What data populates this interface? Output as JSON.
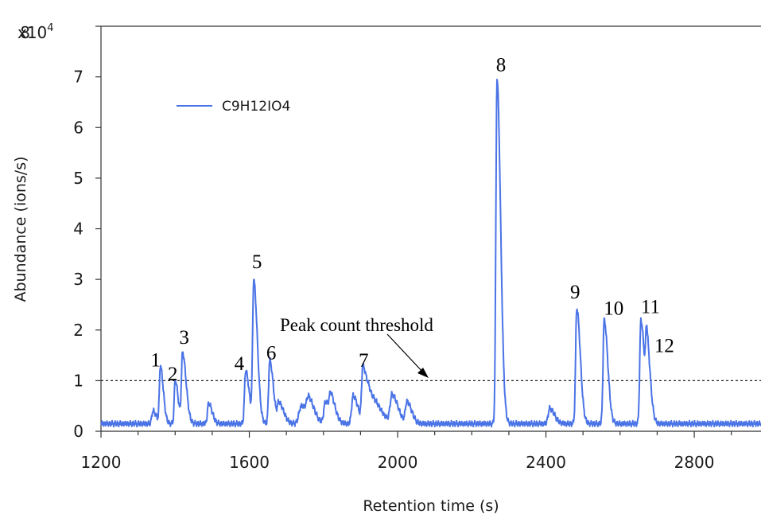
{
  "chart_data": {
    "type": "line",
    "xlabel": "Retention time (s)",
    "ylabel": "Abundance (ions/s)",
    "xlim": [
      1200,
      2980
    ],
    "ylim": [
      0,
      8
    ],
    "y_multiplier_label": "x10",
    "y_multiplier_exp": "4",
    "x_ticks": [
      1200,
      1600,
      2000,
      2400,
      2800
    ],
    "x_tick_labels": [
      "1200",
      "1600",
      "2000",
      "2400",
      "2800"
    ],
    "y_ticks": [
      0,
      1,
      2,
      3,
      4,
      5,
      6,
      7,
      8
    ],
    "y_tick_labels": [
      "0",
      "1",
      "2",
      "3",
      "4",
      "5",
      "6",
      "7",
      "8"
    ],
    "grid": false,
    "legend_position": "top-left",
    "series_color": "#4a73e6",
    "series": [
      {
        "name": "C9H12IO4",
        "baseline": 0.15,
        "peaks": [
          {
            "x": 1340,
            "y": 0.25,
            "w": 3
          },
          {
            "x": 1360,
            "y": 1.12,
            "w": 2.5
          },
          {
            "x": 1400,
            "y": 0.85,
            "w": 2.5
          },
          {
            "x": 1420,
            "y": 1.38,
            "w": 3
          },
          {
            "x": 1490,
            "y": 0.4,
            "w": 3
          },
          {
            "x": 1590,
            "y": 1.05,
            "w": 3
          },
          {
            "x": 1612,
            "y": 2.78,
            "w": 3
          },
          {
            "x": 1655,
            "y": 1.25,
            "w": 3
          },
          {
            "x": 1680,
            "y": 0.4,
            "w": 4
          },
          {
            "x": 1740,
            "y": 0.35,
            "w": 6
          },
          {
            "x": 1760,
            "y": 0.35,
            "w": 5
          },
          {
            "x": 1805,
            "y": 0.42,
            "w": 4
          },
          {
            "x": 1820,
            "y": 0.42,
            "w": 4
          },
          {
            "x": 1880,
            "y": 0.55,
            "w": 4
          },
          {
            "x": 1906,
            "y": 1.05,
            "w": 3
          },
          {
            "x": 1925,
            "y": 0.55,
            "w": 8
          },
          {
            "x": 1985,
            "y": 0.55,
            "w": 5
          },
          {
            "x": 2025,
            "y": 0.42,
            "w": 4
          },
          {
            "x": 2268,
            "y": 6.8,
            "w": 3
          },
          {
            "x": 2410,
            "y": 0.3,
            "w": 4
          },
          {
            "x": 2483,
            "y": 2.28,
            "w": 3
          },
          {
            "x": 2557,
            "y": 2.05,
            "w": 3
          },
          {
            "x": 2656,
            "y": 2.05,
            "w": 3
          },
          {
            "x": 2672,
            "y": 1.45,
            "w": 3
          }
        ]
      }
    ],
    "threshold": {
      "y": 1,
      "label": "Peak count threshold"
    },
    "peak_labels": [
      {
        "text": "1",
        "x": 1360,
        "y": 1.12
      },
      {
        "text": "2",
        "x": 1400,
        "y": 0.85
      },
      {
        "text": "3",
        "x": 1420,
        "y": 1.38
      },
      {
        "text": "4",
        "x": 1590,
        "y": 1.05
      },
      {
        "text": "5",
        "x": 1612,
        "y": 2.78
      },
      {
        "text": "6",
        "x": 1655,
        "y": 1.25
      },
      {
        "text": "7",
        "x": 1906,
        "y": 1.05
      },
      {
        "text": "8",
        "x": 2268,
        "y": 6.8
      },
      {
        "text": "9",
        "x": 2483,
        "y": 2.28
      },
      {
        "text": "10",
        "x": 2557,
        "y": 2.05
      },
      {
        "text": "11",
        "x": 2656,
        "y": 2.05
      },
      {
        "text": "12",
        "x": 2672,
        "y": 1.45
      }
    ]
  }
}
